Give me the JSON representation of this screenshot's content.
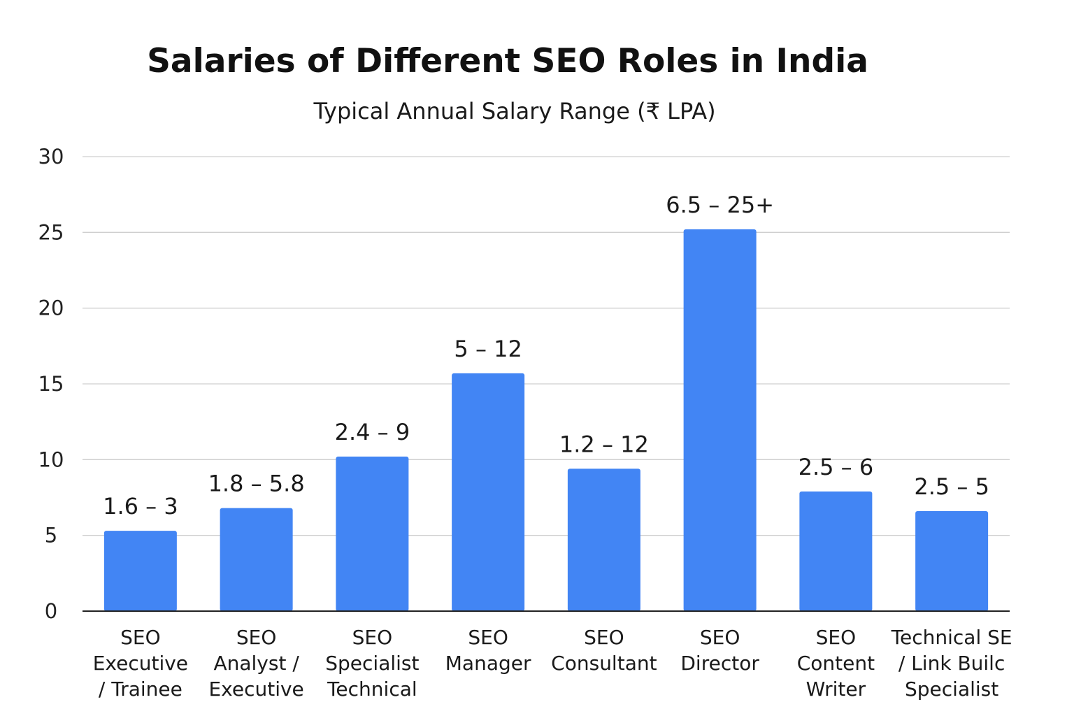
{
  "chart_data": {
    "type": "bar",
    "title": "Salaries of Different SEO Roles in India",
    "subtitle": "Typical Annual Salary Range (₹ LPA)",
    "xlabel": "",
    "ylabel": "",
    "ylim": [
      0,
      30
    ],
    "yticks": [
      0,
      5,
      10,
      15,
      20,
      25,
      30
    ],
    "grid": true,
    "bar_color": "#4285f4",
    "categories": [
      [
        "SEO",
        "Executive",
        "/ Trainee"
      ],
      [
        "SEO",
        "Analyst /",
        "Executive"
      ],
      [
        "SEO",
        "Specialist",
        "Technical"
      ],
      [
        "SEO",
        "Manager"
      ],
      [
        "SEO",
        "Consultant"
      ],
      [
        "SEO",
        "Director"
      ],
      [
        "SEO",
        "Content",
        "Writer"
      ],
      [
        "Technical SE",
        "/ Link Builc",
        "Specialist"
      ]
    ],
    "values": [
      5.3,
      6.8,
      10.2,
      15.7,
      9.4,
      25.2,
      7.9,
      6.6
    ],
    "data_labels": [
      "1.6 – 3",
      "1.8 – 5.8",
      "2.4 – 9",
      "5 – 12",
      "1.2 – 12",
      "6.5 – 25+",
      "2.5 – 6",
      "2.5 – 5"
    ]
  }
}
